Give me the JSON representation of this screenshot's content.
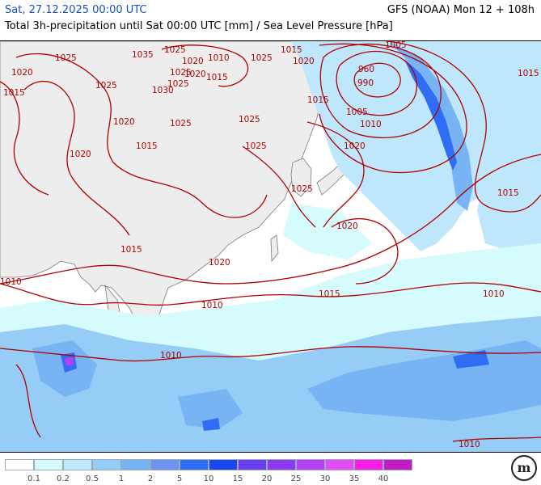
{
  "header": {
    "date": "Sat, 27.12.2025 00:00 UTC",
    "model": "GFS (NOAA) Mon 12 + 108h",
    "description": "Total 3h-precipitation until Sat 00:00 UTC [mm] / Sea Level Pressure [hPa]"
  },
  "legend": {
    "levels": [
      "0.1",
      "0.2",
      "0.5",
      "1",
      "2",
      "5",
      "10",
      "15",
      "20",
      "25",
      "30",
      "35",
      "40"
    ],
    "colors": [
      "#ffffff",
      "#d6fbfd",
      "#bfe7fb",
      "#96cdf7",
      "#78b4f4",
      "#6e93f0",
      "#2f6ef4",
      "#1c46ee",
      "#6a3cf2",
      "#8b3cf0",
      "#b440ef",
      "#e24cf2",
      "#fa1ce8",
      "#c31bc4"
    ]
  },
  "isobars": {
    "color": "#b00000",
    "labels": [
      "1020",
      "1025",
      "1035",
      "1025",
      "1020",
      "1010",
      "1025",
      "1015",
      "1025",
      "1020",
      "1005",
      "1015",
      "1025",
      "1025",
      "1020",
      "1030",
      "1015",
      "1015",
      "1020",
      "1025",
      "1025",
      "960",
      "990",
      "1015",
      "1005",
      "1010",
      "1020",
      "1015",
      "1020",
      "1015",
      "1025",
      "1025",
      "1020",
      "1015",
      "1020",
      "1010",
      "1015",
      "1010",
      "1010",
      "1010",
      "1010"
    ]
  },
  "logo": {
    "text": "m"
  }
}
